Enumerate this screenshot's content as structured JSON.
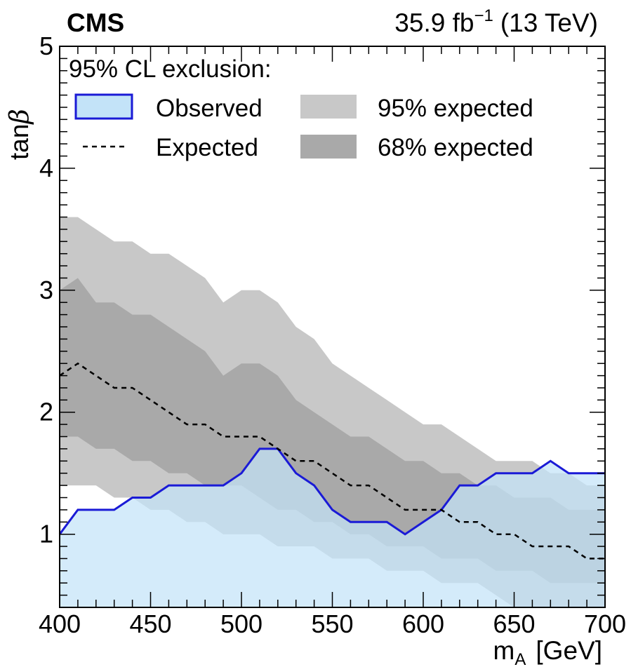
{
  "header": {
    "experiment": "CMS",
    "lumi": "35.9 fb",
    "lumi_exp": "−1",
    "energy": "(13 TeV)"
  },
  "legend": {
    "title": "95% CL exclusion:",
    "observed": "Observed",
    "expected": "Expected",
    "band95": "95% expected",
    "band68": "68% expected"
  },
  "colors": {
    "observed_fill": "#c3e3f8",
    "observed_line": "#1a1ad6",
    "band95": "#c8c8c8",
    "band68": "#a9a9a9",
    "expected_line": "#000000"
  },
  "chart_data": {
    "type": "area",
    "title": "",
    "xlabel_main": "m",
    "xlabel_sub": "A",
    "xlabel_unit": "[GeV]",
    "ylabel_main": "tan",
    "ylabel_greek": "β",
    "xlim": [
      400,
      700
    ],
    "ylim": [
      0.4,
      5.0
    ],
    "xticks": [
      400,
      450,
      500,
      550,
      600,
      650,
      700
    ],
    "yticks": [
      1,
      2,
      3,
      4,
      5
    ],
    "x": [
      400,
      410,
      420,
      430,
      440,
      450,
      460,
      470,
      480,
      490,
      500,
      510,
      520,
      530,
      540,
      550,
      560,
      570,
      580,
      590,
      600,
      610,
      620,
      630,
      640,
      650,
      660,
      670,
      680,
      690,
      700
    ],
    "series": [
      {
        "name": "95% expected",
        "kind": "band",
        "lower": [
          1.4,
          1.4,
          1.4,
          1.3,
          1.3,
          1.2,
          1.2,
          1.1,
          1.1,
          1.0,
          1.0,
          1.0,
          0.9,
          0.9,
          0.9,
          0.8,
          0.8,
          0.8,
          0.7,
          0.7,
          0.7,
          0.6,
          0.6,
          0.6,
          0.5,
          0.4,
          0.4,
          0.4,
          0.4,
          0.4,
          0.4
        ],
        "upper": [
          3.6,
          3.6,
          3.5,
          3.4,
          3.4,
          3.3,
          3.3,
          3.2,
          3.1,
          2.9,
          3.0,
          3.0,
          2.9,
          2.7,
          2.6,
          2.4,
          2.3,
          2.2,
          2.1,
          2.0,
          1.9,
          1.9,
          1.8,
          1.7,
          1.6,
          1.6,
          1.6,
          1.5,
          1.5,
          1.4,
          1.4
        ]
      },
      {
        "name": "68% expected",
        "kind": "band",
        "lower": [
          1.8,
          1.8,
          1.7,
          1.7,
          1.6,
          1.6,
          1.5,
          1.5,
          1.4,
          1.4,
          1.4,
          1.3,
          1.2,
          1.2,
          1.1,
          1.1,
          1.0,
          1.0,
          0.9,
          0.9,
          0.9,
          0.8,
          0.8,
          0.8,
          0.7,
          0.7,
          0.7,
          0.6,
          0.6,
          0.6,
          0.6
        ],
        "upper": [
          3.0,
          3.1,
          2.9,
          2.9,
          2.8,
          2.8,
          2.7,
          2.6,
          2.5,
          2.3,
          2.4,
          2.4,
          2.3,
          2.1,
          2.0,
          1.9,
          1.8,
          1.8,
          1.7,
          1.6,
          1.6,
          1.5,
          1.5,
          1.4,
          1.4,
          1.3,
          1.3,
          1.3,
          1.2,
          1.2,
          1.2
        ]
      },
      {
        "name": "Expected",
        "kind": "line",
        "y": [
          2.3,
          2.4,
          2.3,
          2.2,
          2.2,
          2.1,
          2.0,
          1.9,
          1.9,
          1.8,
          1.8,
          1.8,
          1.7,
          1.6,
          1.6,
          1.5,
          1.4,
          1.4,
          1.3,
          1.2,
          1.2,
          1.2,
          1.1,
          1.1,
          1.0,
          1.0,
          0.9,
          0.9,
          0.9,
          0.8,
          0.8
        ]
      },
      {
        "name": "Observed",
        "kind": "excluded-region",
        "y": [
          1.0,
          1.2,
          1.2,
          1.2,
          1.3,
          1.3,
          1.4,
          1.4,
          1.4,
          1.4,
          1.5,
          1.7,
          1.7,
          1.5,
          1.4,
          1.2,
          1.1,
          1.1,
          1.1,
          1.0,
          1.1,
          1.2,
          1.4,
          1.4,
          1.5,
          1.5,
          1.5,
          1.6,
          1.5,
          1.5,
          1.5
        ]
      }
    ]
  }
}
